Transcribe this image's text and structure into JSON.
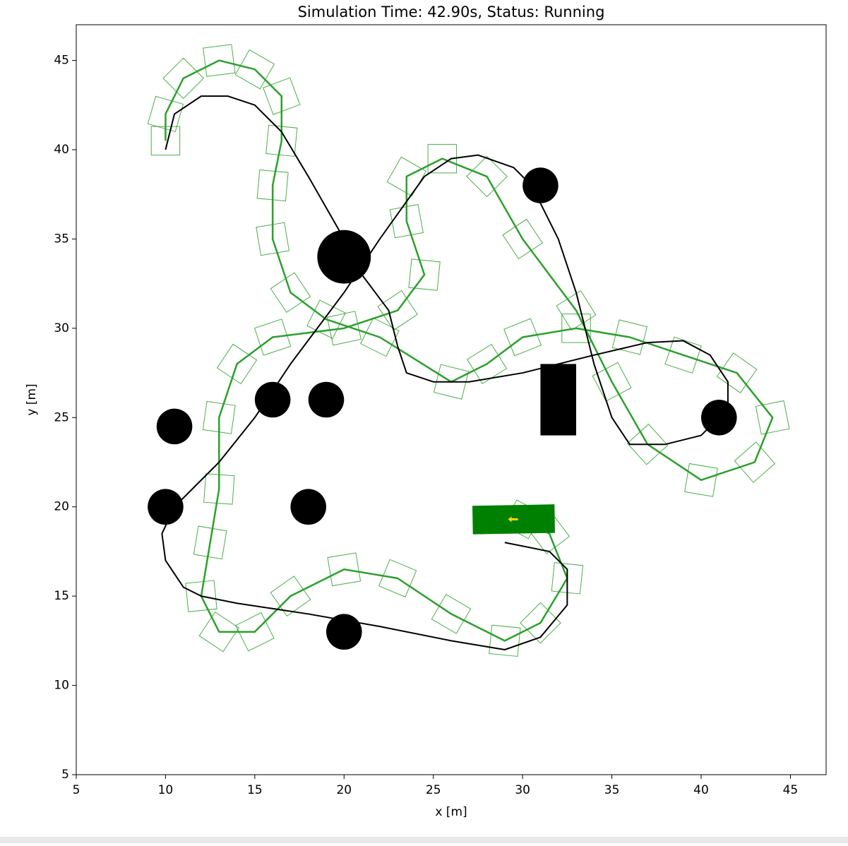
{
  "chart_data": {
    "type": "trajectory",
    "title": "Simulation Time: 42.90s, Status: Running",
    "x_label": "x [m]",
    "y_label": "y [m]",
    "xlim": [
      5,
      47
    ],
    "ylim": [
      5,
      47
    ],
    "xticks": [
      5,
      10,
      15,
      20,
      25,
      30,
      35,
      40,
      45
    ],
    "yticks": [
      5,
      10,
      15,
      20,
      25,
      30,
      35,
      40,
      45
    ],
    "series": [
      {
        "color": "#2ca02c",
        "footprint": 1.6,
        "x": [
          10,
          10,
          11,
          13,
          15,
          16.5,
          16.5,
          16,
          16,
          17,
          19,
          22,
          26,
          28,
          30,
          33,
          36,
          39,
          42,
          44,
          43,
          40,
          37,
          35,
          33,
          30,
          28,
          25.5,
          23.5,
          23.5,
          24.5,
          23,
          20,
          16,
          14,
          13,
          13,
          12.5,
          12,
          13,
          15,
          17,
          20,
          23,
          26,
          29,
          31,
          32.5,
          31.5,
          30
        ],
        "y": [
          40.5,
          42,
          44,
          45,
          44.5,
          43,
          40.5,
          38,
          35,
          32,
          30.5,
          29.5,
          27,
          28,
          29.5,
          30,
          29.5,
          28.5,
          27.5,
          25,
          22.5,
          21.5,
          23.5,
          27,
          31,
          35,
          38.5,
          39.5,
          38.5,
          36,
          33,
          31,
          30,
          29.5,
          28,
          25,
          21,
          18,
          15,
          13,
          13,
          15,
          16.5,
          16,
          14,
          12.5,
          13.5,
          16,
          18.5,
          19.3
        ]
      },
      {
        "color": "#000000",
        "x": [
          10,
          10.5,
          12,
          13.5,
          15,
          16.5,
          18,
          20,
          21,
          22.5,
          23,
          23.5,
          25,
          27,
          30,
          34,
          37,
          39,
          40.5,
          41.5,
          41.5,
          40,
          38,
          36,
          35,
          34,
          33,
          32,
          30.5,
          29.5,
          27.5,
          26,
          24.5,
          22,
          20,
          17,
          15,
          13,
          10.5,
          9.8,
          10,
          11,
          12,
          14,
          18,
          22,
          26,
          29,
          31,
          32.5,
          32.5,
          31.5,
          29
        ],
        "y": [
          40,
          42,
          43,
          43,
          42.5,
          41,
          38.5,
          35,
          33,
          31,
          29,
          27.5,
          27,
          27,
          27.5,
          28.5,
          29.2,
          29.3,
          28.5,
          27,
          25.5,
          24,
          23.5,
          23.5,
          25,
          28,
          32,
          35,
          38,
          39,
          39.7,
          39.5,
          38.5,
          35,
          32,
          28,
          25,
          22.5,
          20,
          18.5,
          17,
          15.5,
          15,
          14.6,
          14,
          13.3,
          12.5,
          12,
          12.7,
          14.5,
          16.5,
          17.5,
          18
        ]
      }
    ],
    "circles": [
      {
        "x": 20,
        "y": 34,
        "r": 1.5
      },
      {
        "x": 31,
        "y": 38,
        "r": 1
      },
      {
        "x": 16,
        "y": 26,
        "r": 1
      },
      {
        "x": 19,
        "y": 26,
        "r": 1
      },
      {
        "x": 10.5,
        "y": 24.5,
        "r": 1
      },
      {
        "x": 10,
        "y": 20,
        "r": 1
      },
      {
        "x": 18,
        "y": 20,
        "r": 1
      },
      {
        "x": 20,
        "y": 13,
        "r": 1
      },
      {
        "x": 41,
        "y": 25,
        "r": 1
      }
    ],
    "rects": [
      {
        "x": 31,
        "y": 24,
        "width": 2,
        "height": 4
      }
    ],
    "vehicle": {
      "x": 29.5,
      "y": 19.3,
      "width": 4.6,
      "height": 1.6,
      "color": "#008000",
      "arrow_color": "#ffd700"
    }
  }
}
